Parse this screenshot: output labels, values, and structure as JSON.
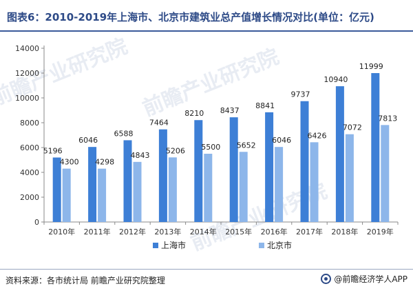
{
  "title": "图表6：2010-2019年上海市、北京市建筑业总产值增长情况对比(单位：亿元)",
  "source": "资料来源：各市统计局 前瞻产业研究院整理",
  "brand": "@前瞻经济学人APP",
  "watermark": "前瞻产业研究院",
  "colors": {
    "shanghai": "#3d7fd6",
    "beijing": "#8db6ea",
    "axis": "#888888"
  },
  "chart_data": {
    "type": "bar",
    "title": "图表6：2010-2019年上海市、北京市建筑业总产值增长情况对比(单位：亿元)",
    "categories": [
      "2010年",
      "2011年",
      "2012年",
      "2013年",
      "2014年",
      "2015年",
      "2016年",
      "2017年",
      "2018年",
      "2019年"
    ],
    "series": [
      {
        "name": "上海市",
        "values": [
          5196,
          6046,
          6588,
          7464,
          8210,
          8437,
          8841,
          9737,
          10940,
          11999
        ]
      },
      {
        "name": "北京市",
        "values": [
          4300,
          4298,
          4843,
          5206,
          5500,
          5652,
          6046,
          6426,
          7072,
          7813
        ]
      }
    ],
    "ylim": [
      0,
      14000
    ],
    "yticks": [
      0,
      2000,
      4000,
      6000,
      8000,
      10000,
      12000,
      14000
    ],
    "xlabel": "",
    "ylabel": "",
    "grid": false,
    "legend": "bottom-center",
    "data_labels": true
  }
}
